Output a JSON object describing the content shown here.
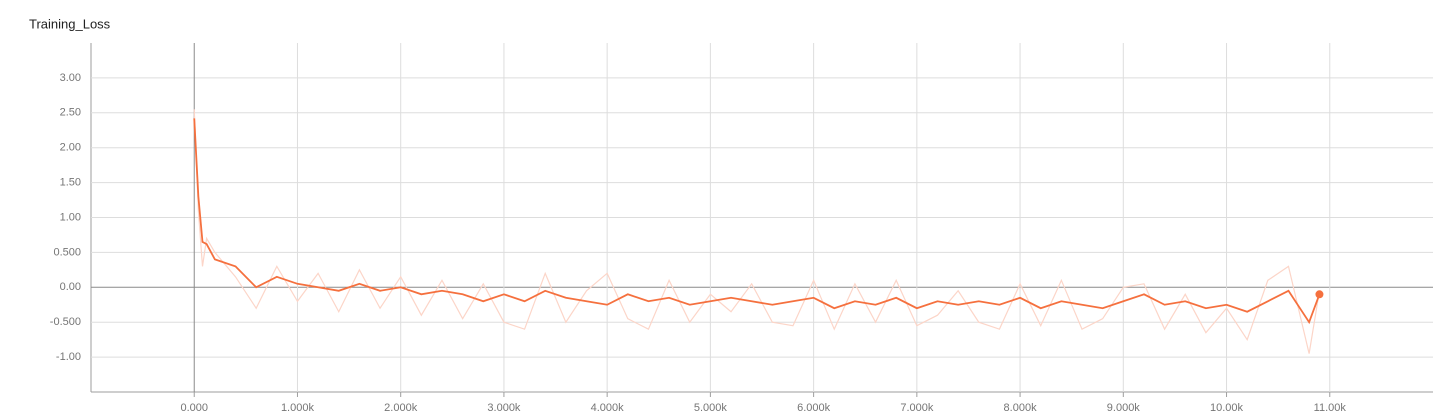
{
  "chart_data": {
    "type": "line",
    "title": "Training_Loss",
    "x": [
      0,
      40,
      80,
      120,
      200,
      400,
      600,
      800,
      1000,
      1200,
      1400,
      1600,
      1800,
      2000,
      2200,
      2400,
      2600,
      2800,
      3000,
      3200,
      3400,
      3600,
      3800,
      4000,
      4200,
      4400,
      4600,
      4800,
      5000,
      5200,
      5400,
      5600,
      5800,
      6000,
      6200,
      6400,
      6600,
      6800,
      7000,
      7200,
      7400,
      7600,
      7800,
      8000,
      8200,
      8400,
      8600,
      8800,
      9000,
      9200,
      9400,
      9600,
      9800,
      10000,
      10200,
      10400,
      10600,
      10800,
      10900
    ],
    "series": [
      {
        "color": "#fcd5c8",
        "values": [
          2.55,
          1.1,
          0.3,
          0.7,
          0.5,
          0.15,
          -0.3,
          0.3,
          -0.2,
          0.2,
          -0.35,
          0.25,
          -0.3,
          0.15,
          -0.4,
          0.1,
          -0.45,
          0.05,
          -0.5,
          -0.6,
          0.2,
          -0.5,
          -0.05,
          0.2,
          -0.45,
          -0.6,
          0.1,
          -0.5,
          -0.1,
          -0.35,
          0.05,
          -0.5,
          -0.55,
          0.1,
          -0.6,
          0.05,
          -0.5,
          0.1,
          -0.55,
          -0.4,
          -0.05,
          -0.5,
          -0.6,
          0.05,
          -0.55,
          0.1,
          -0.6,
          -0.45,
          0.0,
          0.05,
          -0.6,
          -0.1,
          -0.65,
          -0.3,
          -0.75,
          0.1,
          0.3,
          -0.95,
          -0.05
        ]
      },
      {
        "color": "#f5703e",
        "values": [
          2.42,
          1.3,
          0.65,
          0.62,
          0.4,
          0.3,
          0.0,
          0.15,
          0.05,
          0.0,
          -0.05,
          0.05,
          -0.05,
          0.0,
          -0.1,
          -0.05,
          -0.1,
          -0.2,
          -0.1,
          -0.2,
          -0.05,
          -0.15,
          -0.2,
          -0.25,
          -0.1,
          -0.2,
          -0.15,
          -0.25,
          -0.2,
          -0.15,
          -0.2,
          -0.25,
          -0.2,
          -0.15,
          -0.3,
          -0.2,
          -0.25,
          -0.15,
          -0.3,
          -0.2,
          -0.25,
          -0.2,
          -0.25,
          -0.15,
          -0.3,
          -0.2,
          -0.25,
          -0.3,
          -0.2,
          -0.1,
          -0.25,
          -0.2,
          -0.3,
          -0.25,
          -0.35,
          -0.2,
          -0.05,
          -0.5,
          -0.1
        ]
      }
    ],
    "xlim": [
      -1000,
      12000
    ],
    "ylim": [
      -1.5,
      3.5
    ],
    "xticks": [
      {
        "value": 0,
        "label": "0.000"
      },
      {
        "value": 1000,
        "label": "1.000k"
      },
      {
        "value": 2000,
        "label": "2.000k"
      },
      {
        "value": 3000,
        "label": "3.000k"
      },
      {
        "value": 4000,
        "label": "4.000k"
      },
      {
        "value": 5000,
        "label": "5.000k"
      },
      {
        "value": 6000,
        "label": "6.000k"
      },
      {
        "value": 7000,
        "label": "7.000k"
      },
      {
        "value": 8000,
        "label": "8.000k"
      },
      {
        "value": 9000,
        "label": "9.000k"
      },
      {
        "value": 10000,
        "label": "10.00k"
      },
      {
        "value": 11000,
        "label": "11.00k"
      }
    ],
    "yticks": [
      {
        "value": -1,
        "label": "-1.00"
      },
      {
        "value": -0.5,
        "label": "-0.500"
      },
      {
        "value": 0,
        "label": "0.00"
      },
      {
        "value": 0.5,
        "label": "0.500"
      },
      {
        "value": 1,
        "label": "1.00"
      },
      {
        "value": 1.5,
        "label": "1.50"
      },
      {
        "value": 2,
        "label": "2.00"
      },
      {
        "value": 2.5,
        "label": "2.50"
      },
      {
        "value": 3,
        "label": "3.00"
      }
    ],
    "grid": true
  }
}
